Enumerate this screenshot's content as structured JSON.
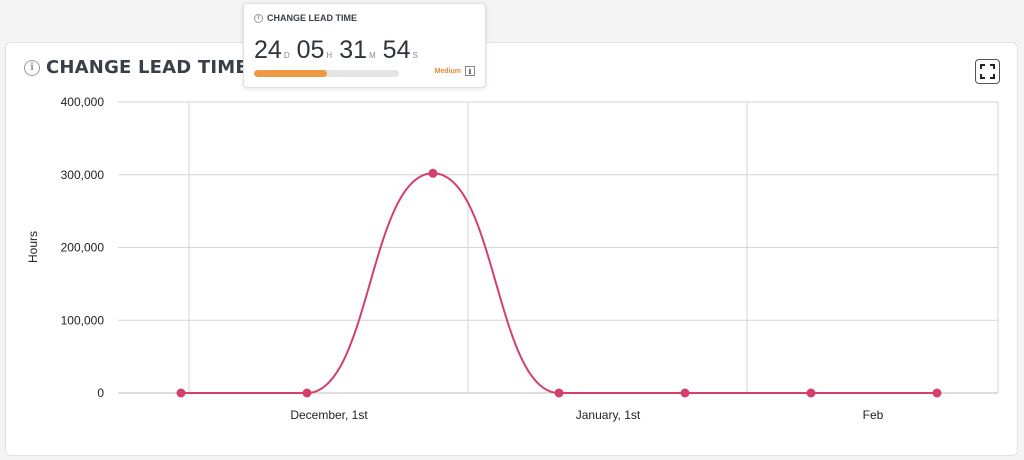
{
  "popup": {
    "title": "CHANGE LEAD TIME",
    "days": "24",
    "days_unit": "D",
    "hours": "05",
    "hours_unit": "H",
    "minutes": "31",
    "minutes_unit": "M",
    "seconds": "54",
    "seconds_unit": "S",
    "progress": 0.5,
    "level": "Medium",
    "progress_color": "#ee9a44",
    "level_color": "#ee8a2c",
    "info_label": "i"
  },
  "card": {
    "title": "CHANGE LEAD TIME",
    "info_label": "i",
    "expand_icon": "expand-icon"
  },
  "chart_data": {
    "type": "line",
    "title": "",
    "xlabel": "",
    "ylabel": "Hours",
    "ylim": [
      0,
      400000
    ],
    "yticks": [
      0,
      100000,
      200000,
      300000,
      400000
    ],
    "ytick_labels": [
      "0",
      "100,000",
      "200,000",
      "300,000",
      "400,000"
    ],
    "xticks": [
      "December, 1st",
      "January, 1st",
      "Feb"
    ],
    "grid": true,
    "smooth": true,
    "series": [
      {
        "color": "#d43f6b",
        "values": [
          0,
          0,
          302000,
          0,
          0,
          0,
          0
        ]
      }
    ]
  }
}
